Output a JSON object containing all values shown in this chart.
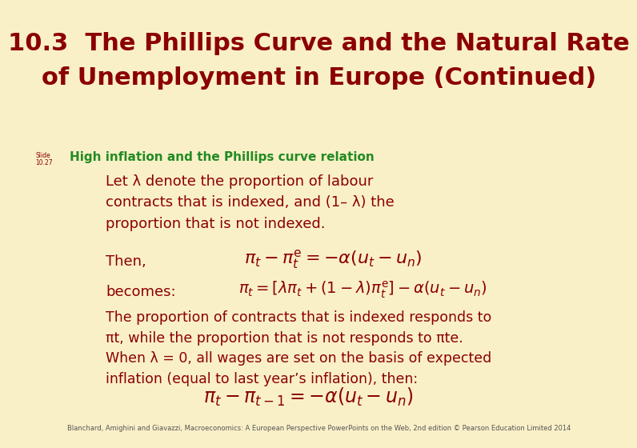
{
  "title_line1": "10.3  The Phillips Curve and the Natural Rate",
  "title_line2": "of Unemployment in Europe (Continued)",
  "title_color": "#8B0000",
  "title_fontsize": 22,
  "background_color": "#FAF0C8",
  "header_bg_color": "#F5C518",
  "header_text": "High inflation and the Phillips curve relation",
  "header_text_color": "#228B22",
  "slide_label_line1": "Slide",
  "slide_label_line2": "10.27",
  "slide_label_color": "#8B0000",
  "body_text_color": "#8B0000",
  "body_fontsize": 13,
  "para1_line1": "Let λ denote the proportion of labour",
  "para1_line2": "contracts that is indexed, and (1– λ) the",
  "para1_line3": "proportion that is not indexed.",
  "then_label": "Then,",
  "becomes_label": "becomes:",
  "para2_line1": "The proportion of contracts that is indexed responds to",
  "para2_line2": "πt, while the proportion that is not responds to πte.",
  "para2_line3": "When λ = 0, all wages are set on the basis of expected",
  "para2_line4": "inflation (equal to last year’s inflation), then:",
  "footer": "Blanchard, Amighini and Giavazzi, Macroeconomics: A European Perspective PowerPoints on the Web, 2nd edition © Pearson Education Limited 2014",
  "footer_fontsize": 6,
  "footer_color": "#555555",
  "eq_color": "#8B0000"
}
